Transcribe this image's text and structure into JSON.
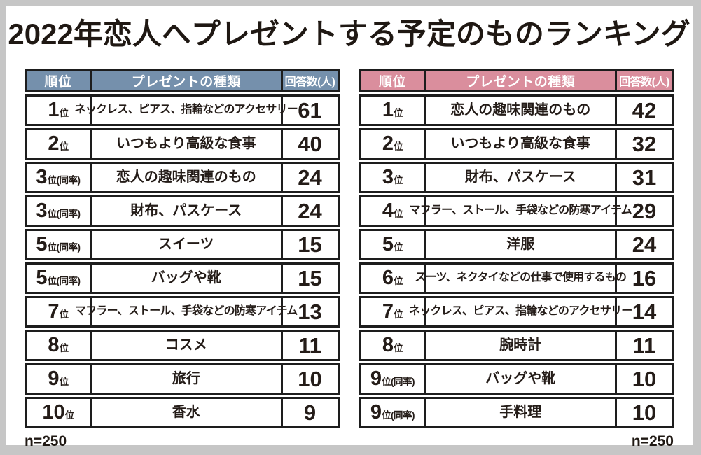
{
  "title": "2022年恋人へプレゼントする予定のものランキング",
  "colors": {
    "frame_gray": "#c6c6c6",
    "table_border": "#1d1d1d",
    "left_table_header": "#7590AC",
    "right_table_header": "#DA8E9D",
    "header_text": "#ffffff",
    "body_text": "#241c18"
  },
  "chart_data": [
    {
      "type": "table",
      "accent_color": "#7590AC",
      "headers": {
        "rank": "順位",
        "item": "プレゼントの種類",
        "count": "回答数(人)"
      },
      "sample_size": "n=250",
      "rows": [
        {
          "rank": "1",
          "suffix": "位",
          "item": "ネックレス、ピアス、指輪などのアクセサリー",
          "count": "61"
        },
        {
          "rank": "2",
          "suffix": "位",
          "item": "いつもより高級な食事",
          "count": "40"
        },
        {
          "rank": "3",
          "suffix": "位(同率)",
          "item": "恋人の趣味関連のもの",
          "count": "24"
        },
        {
          "rank": "3",
          "suffix": "位(同率)",
          "item": "財布、パスケース",
          "count": "24"
        },
        {
          "rank": "5",
          "suffix": "位(同率)",
          "item": "スイーツ",
          "count": "15"
        },
        {
          "rank": "5",
          "suffix": "位(同率)",
          "item": "バッグや靴",
          "count": "15"
        },
        {
          "rank": "7",
          "suffix": "位",
          "item": "マフラー、ストール、手袋などの防寒アイテム",
          "count": "13"
        },
        {
          "rank": "8",
          "suffix": "位",
          "item": "コスメ",
          "count": "11"
        },
        {
          "rank": "9",
          "suffix": "位",
          "item": "旅行",
          "count": "10"
        },
        {
          "rank": "10",
          "suffix": "位",
          "item": "香水",
          "count": "9"
        }
      ]
    },
    {
      "type": "table",
      "accent_color": "#DA8E9D",
      "headers": {
        "rank": "順位",
        "item": "プレゼントの種類",
        "count": "回答数(人)"
      },
      "sample_size": "n=250",
      "rows": [
        {
          "rank": "1",
          "suffix": "位",
          "item": "恋人の趣味関連のもの",
          "count": "42"
        },
        {
          "rank": "2",
          "suffix": "位",
          "item": "いつもより高級な食事",
          "count": "32"
        },
        {
          "rank": "3",
          "suffix": "位",
          "item": "財布、パスケース",
          "count": "31"
        },
        {
          "rank": "4",
          "suffix": "位",
          "item": "マフラー、ストール、手袋などの防寒アイテム",
          "count": "29"
        },
        {
          "rank": "5",
          "suffix": "位",
          "item": "洋服",
          "count": "24"
        },
        {
          "rank": "6",
          "suffix": "位",
          "item": "スーツ、ネクタイなどの仕事で使用するもの",
          "count": "16"
        },
        {
          "rank": "7",
          "suffix": "位",
          "item": "ネックレス、ピアス、指輪などのアクセサリー",
          "count": "14"
        },
        {
          "rank": "8",
          "suffix": "位",
          "item": "腕時計",
          "count": "11"
        },
        {
          "rank": "9",
          "suffix": "位(同率)",
          "item": "バッグや靴",
          "count": "10"
        },
        {
          "rank": "9",
          "suffix": "位(同率)",
          "item": "手料理",
          "count": "10"
        }
      ]
    }
  ]
}
